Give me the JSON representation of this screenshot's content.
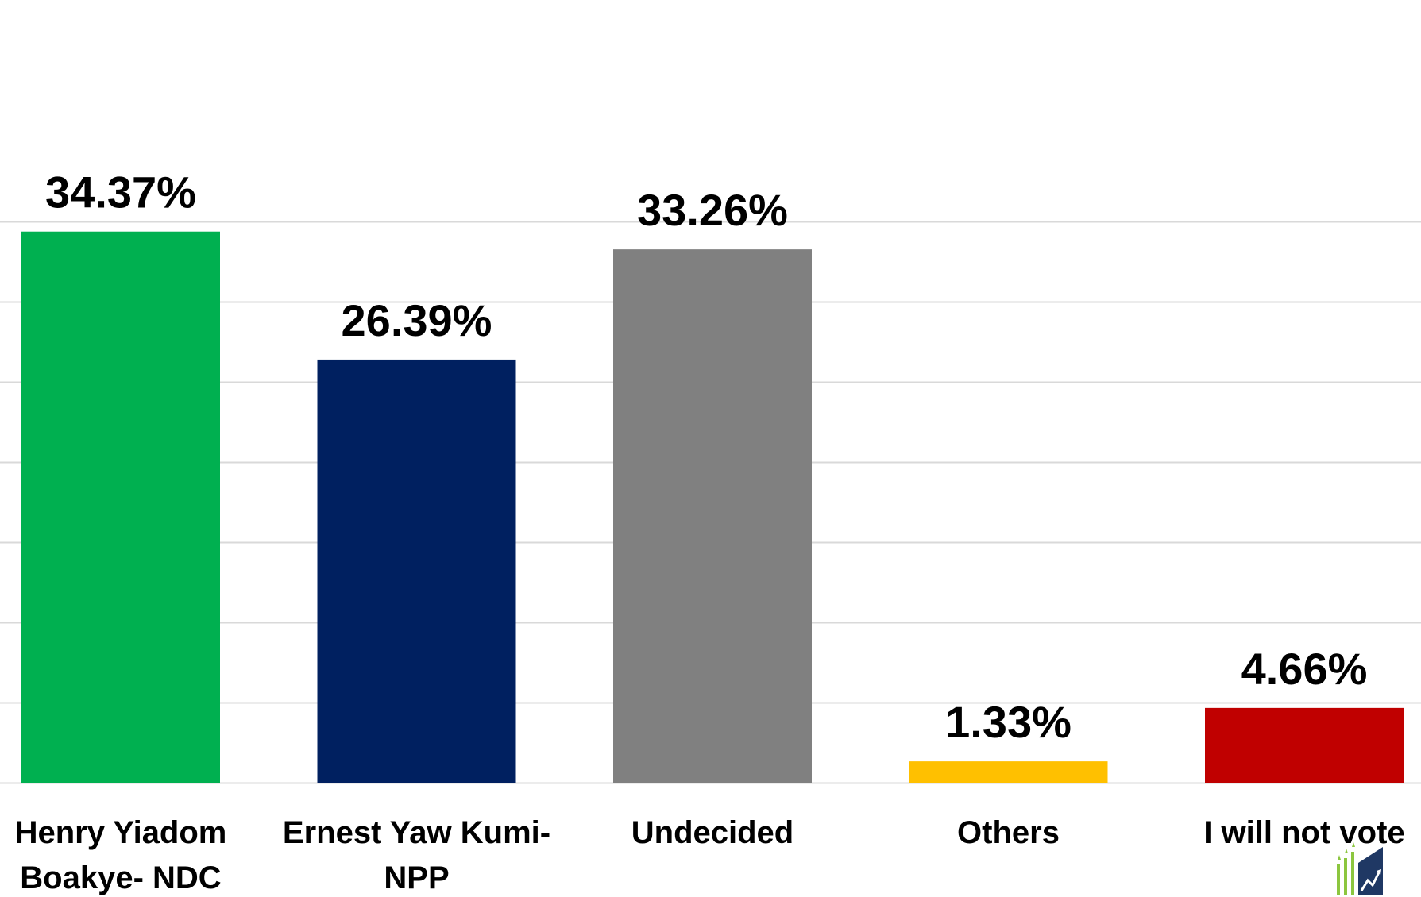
{
  "chart_data": {
    "type": "bar",
    "categories": [
      [
        "Henry Yiadom",
        "Boakye- NDC"
      ],
      [
        "Ernest Yaw Kumi-",
        "NPP"
      ],
      [
        "Undecided"
      ],
      [
        "Others"
      ],
      [
        "I will not vote"
      ]
    ],
    "values": [
      34.37,
      26.39,
      33.26,
      1.33,
      4.66
    ],
    "value_labels": [
      "34.37%",
      "26.39%",
      "33.26%",
      "1.33%",
      "4.66%"
    ],
    "colors": [
      "#00b050",
      "#002060",
      "#808080",
      "#ffc000",
      "#c00000"
    ],
    "ylim": [
      0,
      35
    ],
    "grid": true,
    "gridline_step": 5,
    "title": "",
    "xlabel": "",
    "ylabel": ""
  },
  "logo": {
    "icon": "growth-chart-logo-icon"
  }
}
